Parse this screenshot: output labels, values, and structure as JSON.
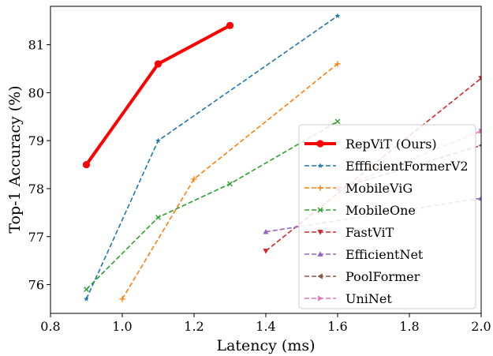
{
  "chart_data": {
    "type": "line",
    "title": "",
    "xlabel": "Latency (ms)",
    "ylabel": "Top-1 Accuracy (%)",
    "xlim": [
      0.8,
      2.0
    ],
    "ylim": [
      75.4,
      81.8
    ],
    "x_ticks": [
      0.8,
      1.0,
      1.2,
      1.4,
      1.6,
      1.8,
      2.0
    ],
    "x_tick_labels": [
      "0.8",
      "1.0",
      "1.2",
      "1.4",
      "1.6",
      "1.8",
      "2.0"
    ],
    "y_ticks": [
      76,
      77,
      78,
      79,
      80,
      81
    ],
    "y_tick_labels": [
      "76",
      "77",
      "78",
      "79",
      "80",
      "81"
    ],
    "grid": false,
    "legend_position": "lower-right",
    "series": [
      {
        "name": "RepViT (Ours)",
        "color": "#ff0000",
        "marker": "circle",
        "style": "solid",
        "x": [
          0.9,
          1.1,
          1.3
        ],
        "y": [
          78.5,
          80.6,
          81.4
        ]
      },
      {
        "name": "EffficientFormerV2",
        "color": "#1f77b4",
        "marker": "star",
        "style": "dashed",
        "x": [
          0.9,
          1.1,
          1.6
        ],
        "y": [
          75.7,
          79.0,
          81.6
        ]
      },
      {
        "name": "MobileViG",
        "color": "#ff7f0e",
        "marker": "plus",
        "style": "dashed",
        "x": [
          1.0,
          1.2,
          1.6
        ],
        "y": [
          75.7,
          78.2,
          80.6
        ]
      },
      {
        "name": "MobileOne",
        "color": "#2ca02c",
        "marker": "x",
        "style": "dashed",
        "x": [
          0.9,
          1.1,
          1.3,
          1.6
        ],
        "y": [
          75.9,
          77.4,
          78.1,
          79.4
        ]
      },
      {
        "name": "FastViT",
        "color": "#d62728",
        "marker": "triangle-down",
        "style": "dashed",
        "x": [
          1.4,
          2.0
        ],
        "y": [
          76.7,
          80.3
        ]
      },
      {
        "name": "EfficientNet",
        "color": "#9467bd",
        "marker": "triangle-up",
        "style": "dashed",
        "x": [
          1.4,
          2.0
        ],
        "y": [
          77.1,
          77.8
        ]
      },
      {
        "name": "PoolFormer",
        "color": "#8c564b",
        "marker": "triangle-left",
        "style": "dashed",
        "x": [
          1.6,
          2.0
        ],
        "y": [
          78.0,
          78.9
        ]
      },
      {
        "name": "UniNet",
        "color": "#e377c2",
        "marker": "triangle-right",
        "style": "dashed",
        "x": [
          1.6,
          2.0
        ],
        "y": [
          78.0,
          79.2
        ]
      }
    ]
  }
}
